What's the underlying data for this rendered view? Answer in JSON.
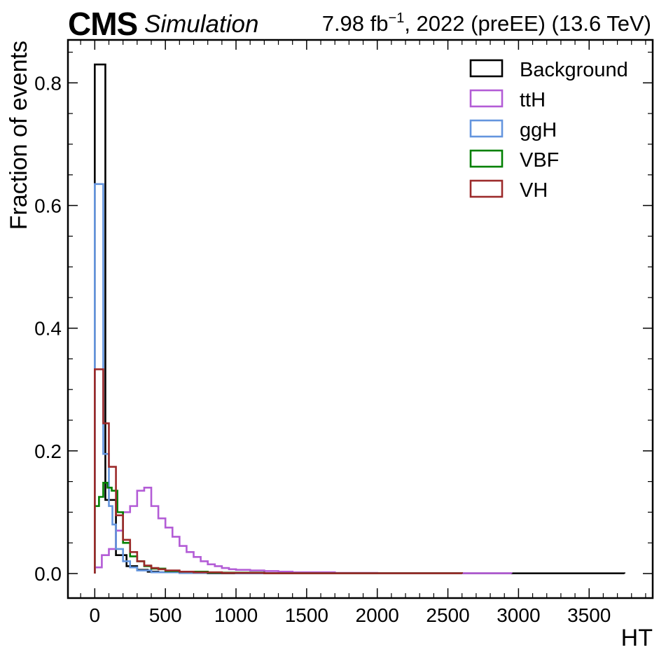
{
  "header": {
    "experiment": "CMS",
    "label": "Simulation",
    "lumi_prefix": "7.98 fb",
    "lumi_sup": "−1",
    "lumi_suffix": ", 2022 (preEE) (13.6 TeV)"
  },
  "chart_data": {
    "type": "histogram-step",
    "xlabel": "HT",
    "ylabel": "Fraction of events",
    "xlim": [
      -190,
      3950
    ],
    "ylim": [
      -0.04,
      0.87
    ],
    "xticks": [
      0,
      500,
      1000,
      1500,
      2000,
      2500,
      3000,
      3500
    ],
    "xtick_labels": [
      "0",
      "500",
      "1000",
      "1500",
      "2000",
      "2500",
      "3000",
      "3500"
    ],
    "yticks": [
      0.0,
      0.2,
      0.4,
      0.6,
      0.8
    ],
    "ytick_labels": [
      "0.0",
      "0.2",
      "0.4",
      "0.6",
      "0.8"
    ],
    "legend_position": "top-right",
    "grid": false,
    "series": [
      {
        "name": "Background",
        "color": "#000000",
        "edges": [
          0,
          75,
          150,
          225,
          300,
          375,
          450,
          600,
          800,
          3750
        ],
        "values": [
          0.83,
          0.12,
          0.03,
          0.012,
          0.006,
          0.003,
          0.002,
          0.001,
          0.0004
        ]
      },
      {
        "name": "ttH",
        "color": "#b35cd6",
        "edges": [
          0,
          50,
          100,
          150,
          200,
          250,
          300,
          350,
          400,
          450,
          500,
          550,
          600,
          650,
          700,
          750,
          800,
          850,
          900,
          950,
          1000,
          1100,
          1200,
          1300,
          1400,
          1500,
          1700,
          2000,
          2950
        ],
        "values": [
          0.01,
          0.03,
          0.04,
          0.07,
          0.1,
          0.11,
          0.135,
          0.14,
          0.11,
          0.09,
          0.075,
          0.06,
          0.045,
          0.035,
          0.027,
          0.02,
          0.015,
          0.012,
          0.009,
          0.007,
          0.006,
          0.005,
          0.004,
          0.003,
          0.002,
          0.002,
          0.001,
          0.0005
        ]
      },
      {
        "name": "ggH",
        "color": "#6495de",
        "edges": [
          0,
          60,
          100,
          125,
          150,
          200,
          250,
          300,
          400,
          600,
          1000,
          2600
        ],
        "values": [
          0.635,
          0.195,
          0.11,
          0.08,
          0.04,
          0.02,
          0.01,
          0.005,
          0.002,
          0.001,
          0.0005
        ]
      },
      {
        "name": "VBF",
        "color": "#008000",
        "edges": [
          0,
          30,
          60,
          90,
          120,
          160,
          200,
          250,
          300,
          350,
          400,
          500,
          600,
          800,
          1200,
          2600
        ],
        "values": [
          0.11,
          0.125,
          0.148,
          0.14,
          0.135,
          0.1,
          0.05,
          0.028,
          0.02,
          0.012,
          0.008,
          0.004,
          0.003,
          0.0015,
          0.0005
        ]
      },
      {
        "name": "VH",
        "color": "#9c2a2a",
        "edges": [
          0,
          60,
          100,
          150,
          200,
          250,
          300,
          350,
          400,
          450,
          500,
          600,
          700,
          900,
          1200,
          2600
        ],
        "values": [
          0.333,
          0.245,
          0.174,
          0.095,
          0.055,
          0.035,
          0.02,
          0.013,
          0.009,
          0.007,
          0.005,
          0.003,
          0.002,
          0.001,
          0.0005
        ]
      }
    ]
  }
}
